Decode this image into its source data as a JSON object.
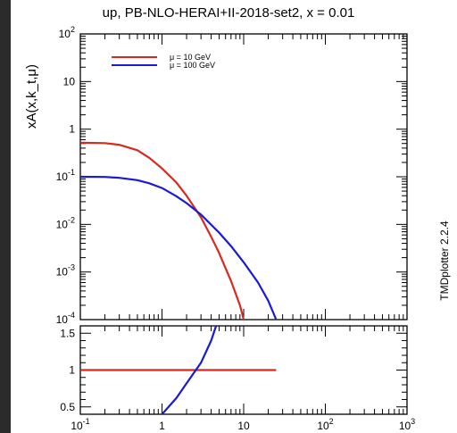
{
  "chart_data": [
    {
      "type": "line",
      "title": "up, PB-NLO-HERAI+II-2018-set2, x = 0.01",
      "ylabel": "xA(x,k_t,μ)",
      "xscale": "log",
      "yscale": "log",
      "xlim": [
        0.1,
        1000
      ],
      "ylim": [
        0.0001,
        100
      ],
      "xtick_labels": [
        "10^-1",
        "1",
        "10",
        "10^2",
        "10^3"
      ],
      "ytick_labels": [
        "10^-4",
        "10^-3",
        "10^-2",
        "10^-1",
        "1",
        "10",
        "10^2"
      ],
      "legend_position": "top-left",
      "series": [
        {
          "name": "μ = 10 GeV",
          "color": "#d62a1e",
          "points": [
            [
              0.1,
              0.52
            ],
            [
              0.2,
              0.51
            ],
            [
              0.3,
              0.47
            ],
            [
              0.5,
              0.36
            ],
            [
              0.7,
              0.25
            ],
            [
              1.0,
              0.15
            ],
            [
              1.5,
              0.076
            ],
            [
              2.0,
              0.04
            ],
            [
              3.0,
              0.014
            ],
            [
              4.0,
              0.0055
            ],
            [
              5.0,
              0.0025
            ],
            [
              6.0,
              0.0012
            ],
            [
              7.0,
              0.00065
            ],
            [
              8.0,
              0.00035
            ],
            [
              9.0,
              0.0002
            ],
            [
              10.0,
              0.0001
            ]
          ]
        },
        {
          "name": "μ = 100 GeV",
          "color": "#1a1ad6",
          "points": [
            [
              0.1,
              0.1
            ],
            [
              0.2,
              0.099
            ],
            [
              0.3,
              0.095
            ],
            [
              0.5,
              0.085
            ],
            [
              0.7,
              0.073
            ],
            [
              1.0,
              0.058
            ],
            [
              1.5,
              0.039
            ],
            [
              2.0,
              0.028
            ],
            [
              3.0,
              0.016
            ],
            [
              5.0,
              0.0067
            ],
            [
              7.0,
              0.0035
            ],
            [
              10.0,
              0.0016
            ],
            [
              15.0,
              0.0006
            ],
            [
              20.0,
              0.00025
            ],
            [
              25.0,
              0.0001
            ]
          ]
        }
      ]
    },
    {
      "type": "line",
      "xscale": "log",
      "yscale": "linear",
      "xlim": [
        0.1,
        1000
      ],
      "ylim": [
        0.4,
        1.6
      ],
      "ytick_labels": [
        "0.5",
        "1",
        "1.5"
      ],
      "series": [
        {
          "color": "#d62a1e",
          "points": [
            [
              0.1,
              1.0
            ],
            [
              25,
              1.0
            ]
          ]
        },
        {
          "color": "#1a1ad6",
          "points": [
            [
              1.0,
              0.4
            ],
            [
              1.5,
              0.62
            ],
            [
              2.0,
              0.82
            ],
            [
              3.0,
              1.1
            ],
            [
              4.0,
              1.4
            ],
            [
              4.6,
              1.6
            ]
          ]
        }
      ]
    }
  ],
  "side_label": "TMDplotter 2.2.4"
}
